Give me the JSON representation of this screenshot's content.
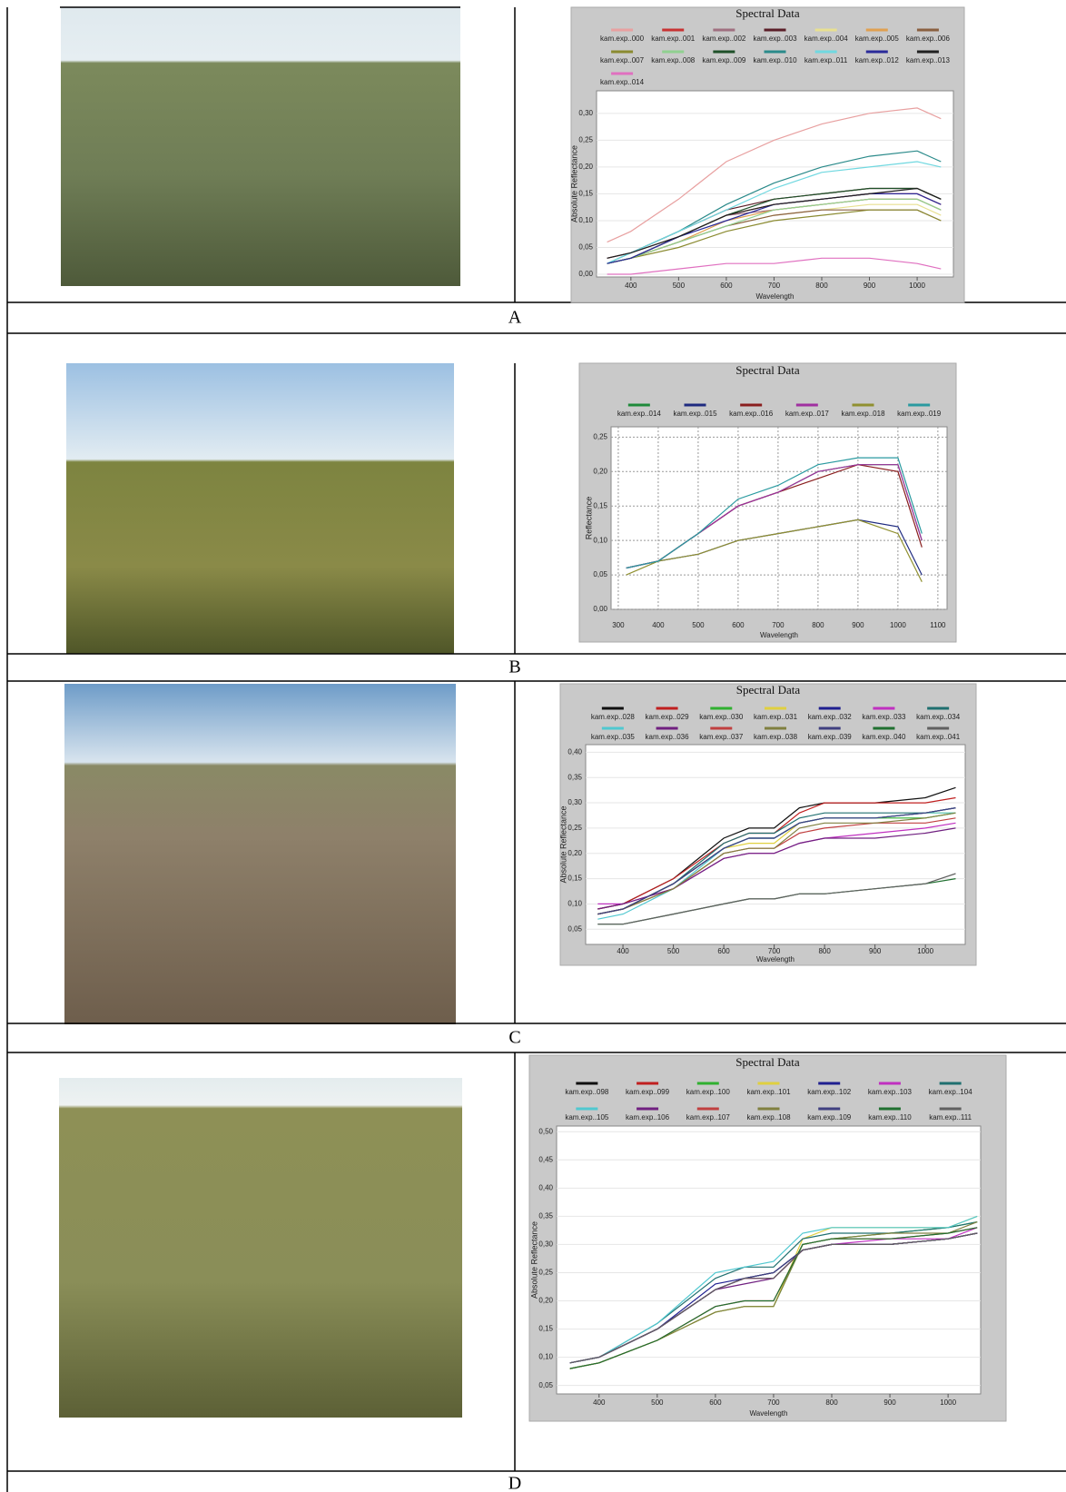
{
  "panel_labels": [
    "A",
    "B",
    "C",
    "D"
  ],
  "chart_data": [
    {
      "type": "line",
      "title": "Spectral Data",
      "xlabel": "Wavelength",
      "ylabel": "Absolute Reflectance",
      "x": [
        350,
        400,
        500,
        600,
        700,
        800,
        900,
        1000,
        1050
      ],
      "xlim": [
        328,
        1076
      ],
      "xticks": [
        400,
        500,
        600,
        700,
        800,
        900,
        1000
      ],
      "ylim": [
        -0.005,
        0.342
      ],
      "yticks": [
        {
          "value": 0,
          "label": "0,00"
        },
        {
          "value": 0.05,
          "label": "0,05"
        },
        {
          "value": 0.1,
          "label": "0,10"
        },
        {
          "value": 0.15,
          "label": "0,15"
        },
        {
          "value": 0.2,
          "label": "0,20"
        },
        {
          "value": 0.25,
          "label": "0,25"
        },
        {
          "value": 0.3,
          "label": "0,30"
        }
      ],
      "grid": true,
      "grid_style": "solid",
      "series": [
        {
          "name": "kam.exp..000",
          "color": "#e8a0a0",
          "values": [
            0.06,
            0.08,
            0.14,
            0.21,
            0.25,
            0.28,
            0.3,
            0.31,
            0.29
          ]
        },
        {
          "name": "kam.exp..001",
          "color": "#c83232",
          "values": [
            0.02,
            0.03,
            0.07,
            0.11,
            0.13,
            0.14,
            0.15,
            0.15,
            0.13
          ]
        },
        {
          "name": "kam.exp..002",
          "color": "#a07080",
          "values": [
            0.03,
            0.04,
            0.07,
            0.11,
            0.12,
            0.13,
            0.14,
            0.14,
            0.12
          ]
        },
        {
          "name": "kam.exp..003",
          "color": "#5a1e28",
          "values": [
            0.03,
            0.04,
            0.08,
            0.12,
            0.14,
            0.15,
            0.16,
            0.16,
            0.14
          ]
        },
        {
          "name": "kam.exp..004",
          "color": "#e8e090",
          "values": [
            0.02,
            0.03,
            0.06,
            0.09,
            0.11,
            0.12,
            0.13,
            0.13,
            0.11
          ]
        },
        {
          "name": "kam.exp..005",
          "color": "#e0a050",
          "values": [
            0.02,
            0.03,
            0.06,
            0.1,
            0.12,
            0.13,
            0.14,
            0.14,
            0.12
          ]
        },
        {
          "name": "kam.exp..006",
          "color": "#8a6040",
          "values": [
            0.02,
            0.03,
            0.06,
            0.09,
            0.11,
            0.12,
            0.12,
            0.12,
            0.1
          ]
        },
        {
          "name": "kam.exp..007",
          "color": "#8a8a30",
          "values": [
            0.02,
            0.03,
            0.05,
            0.08,
            0.1,
            0.11,
            0.12,
            0.12,
            0.1
          ]
        },
        {
          "name": "kam.exp..008",
          "color": "#90d090",
          "values": [
            0.02,
            0.03,
            0.06,
            0.09,
            0.12,
            0.13,
            0.14,
            0.14,
            0.12
          ]
        },
        {
          "name": "kam.exp..009",
          "color": "#1e5028",
          "values": [
            0.02,
            0.03,
            0.07,
            0.11,
            0.14,
            0.15,
            0.16,
            0.16,
            0.14
          ]
        },
        {
          "name": "kam.exp..010",
          "color": "#2a8a8a",
          "values": [
            0.02,
            0.04,
            0.08,
            0.13,
            0.17,
            0.2,
            0.22,
            0.23,
            0.21
          ]
        },
        {
          "name": "kam.exp..011",
          "color": "#70d8e0",
          "values": [
            0.02,
            0.04,
            0.08,
            0.12,
            0.16,
            0.19,
            0.2,
            0.21,
            0.2
          ]
        },
        {
          "name": "kam.exp..012",
          "color": "#2a2a9a",
          "values": [
            0.02,
            0.03,
            0.07,
            0.1,
            0.13,
            0.14,
            0.15,
            0.15,
            0.13
          ]
        },
        {
          "name": "kam.exp..013",
          "color": "#202020",
          "values": [
            0.03,
            0.04,
            0.07,
            0.11,
            0.13,
            0.14,
            0.15,
            0.16,
            0.14
          ]
        },
        {
          "name": "kam.exp..014",
          "color": "#e070c0",
          "values": [
            0.0,
            0.0,
            0.01,
            0.02,
            0.02,
            0.03,
            0.03,
            0.02,
            0.01
          ]
        }
      ]
    },
    {
      "type": "line",
      "title": "Spectral Data",
      "xlabel": "Wavelength",
      "ylabel": "Reflectance",
      "x": [
        320,
        400,
        500,
        600,
        700,
        800,
        900,
        1000,
        1060
      ],
      "xlim": [
        282,
        1123
      ],
      "xticks": [
        300,
        400,
        500,
        600,
        700,
        800,
        900,
        1000,
        1100
      ],
      "ylim": [
        0,
        0.265
      ],
      "yticks": [
        {
          "value": 0,
          "label": "0,00"
        },
        {
          "value": 0.05,
          "label": "0,05"
        },
        {
          "value": 0.1,
          "label": "0,10"
        },
        {
          "value": 0.15,
          "label": "0,15"
        },
        {
          "value": 0.2,
          "label": "0,20"
        },
        {
          "value": 0.25,
          "label": "0,25"
        }
      ],
      "grid": true,
      "grid_style": "dashed",
      "series": [
        {
          "name": "kam.exp..014",
          "color": "#1e8a3a",
          "values": [
            0.06,
            0.07,
            0.11,
            0.15,
            0.17,
            0.2,
            0.21,
            0.21,
            0.1
          ]
        },
        {
          "name": "kam.exp..015",
          "color": "#1e2a80",
          "values": [
            0.06,
            0.07,
            0.08,
            0.1,
            0.11,
            0.12,
            0.13,
            0.12,
            0.05
          ]
        },
        {
          "name": "kam.exp..016",
          "color": "#8a1e1e",
          "values": [
            0.06,
            0.07,
            0.11,
            0.15,
            0.17,
            0.19,
            0.21,
            0.2,
            0.09
          ]
        },
        {
          "name": "kam.exp..017",
          "color": "#a030a0",
          "values": [
            0.06,
            0.07,
            0.11,
            0.15,
            0.17,
            0.2,
            0.21,
            0.21,
            0.1
          ]
        },
        {
          "name": "kam.exp..018",
          "color": "#909030",
          "values": [
            0.05,
            0.07,
            0.08,
            0.1,
            0.11,
            0.12,
            0.13,
            0.11,
            0.04
          ]
        },
        {
          "name": "kam.exp..019",
          "color": "#2a9aa0",
          "values": [
            0.06,
            0.07,
            0.11,
            0.16,
            0.18,
            0.21,
            0.22,
            0.22,
            0.11
          ]
        }
      ]
    },
    {
      "type": "line",
      "title": "Spectral Data",
      "xlabel": "Wavelength",
      "ylabel": "Absolute Reflectance",
      "x": [
        350,
        400,
        500,
        600,
        650,
        700,
        750,
        800,
        900,
        1000,
        1060
      ],
      "xlim": [
        326,
        1079
      ],
      "xticks": [
        400,
        500,
        600,
        700,
        800,
        900,
        1000
      ],
      "ylim": [
        0.02,
        0.415
      ],
      "yticks": [
        {
          "value": 0.05,
          "label": "0,05"
        },
        {
          "value": 0.1,
          "label": "0,10"
        },
        {
          "value": 0.15,
          "label": "0,15"
        },
        {
          "value": 0.2,
          "label": "0,20"
        },
        {
          "value": 0.25,
          "label": "0,25"
        },
        {
          "value": 0.3,
          "label": "0,30"
        },
        {
          "value": 0.35,
          "label": "0,35"
        },
        {
          "value": 0.4,
          "label": "0,40"
        }
      ],
      "grid": true,
      "grid_style": "solid",
      "series": [
        {
          "name": "kam.exp..028",
          "color": "#101010",
          "values": [
            0.09,
            0.1,
            0.15,
            0.23,
            0.25,
            0.25,
            0.29,
            0.3,
            0.3,
            0.31,
            0.33
          ]
        },
        {
          "name": "kam.exp..029",
          "color": "#c02020",
          "values": [
            0.09,
            0.1,
            0.15,
            0.22,
            0.24,
            0.24,
            0.28,
            0.3,
            0.3,
            0.3,
            0.31
          ]
        },
        {
          "name": "kam.exp..030",
          "color": "#30b030",
          "values": [
            0.08,
            0.09,
            0.14,
            0.21,
            0.23,
            0.23,
            0.26,
            0.27,
            0.27,
            0.27,
            0.28
          ]
        },
        {
          "name": "kam.exp..031",
          "color": "#e0d040",
          "values": [
            0.08,
            0.09,
            0.14,
            0.21,
            0.22,
            0.22,
            0.26,
            0.27,
            0.27,
            0.28,
            0.28
          ]
        },
        {
          "name": "kam.exp..032",
          "color": "#202090",
          "values": [
            0.08,
            0.09,
            0.14,
            0.21,
            0.23,
            0.23,
            0.26,
            0.27,
            0.27,
            0.28,
            0.29
          ]
        },
        {
          "name": "kam.exp..033",
          "color": "#c030c0",
          "values": [
            0.1,
            0.1,
            0.13,
            0.19,
            0.2,
            0.2,
            0.22,
            0.23,
            0.24,
            0.25,
            0.26
          ]
        },
        {
          "name": "kam.exp..034",
          "color": "#207070",
          "values": [
            0.08,
            0.09,
            0.14,
            0.22,
            0.24,
            0.24,
            0.27,
            0.28,
            0.28,
            0.28,
            0.29
          ]
        },
        {
          "name": "kam.exp..035",
          "color": "#50c8d0",
          "values": [
            0.07,
            0.08,
            0.13,
            0.21,
            0.23,
            0.23,
            0.26,
            0.27,
            0.27,
            0.28,
            0.28
          ]
        },
        {
          "name": "kam.exp..036",
          "color": "#702080",
          "values": [
            0.09,
            0.1,
            0.13,
            0.19,
            0.2,
            0.2,
            0.22,
            0.23,
            0.23,
            0.24,
            0.25
          ]
        },
        {
          "name": "kam.exp..037",
          "color": "#c04040",
          "values": [
            0.08,
            0.09,
            0.13,
            0.2,
            0.21,
            0.21,
            0.24,
            0.25,
            0.26,
            0.26,
            0.27
          ]
        },
        {
          "name": "kam.exp..038",
          "color": "#808040",
          "values": [
            0.08,
            0.09,
            0.13,
            0.2,
            0.21,
            0.21,
            0.25,
            0.26,
            0.26,
            0.27,
            0.28
          ]
        },
        {
          "name": "kam.exp..039",
          "color": "#404080",
          "values": [
            0.08,
            0.09,
            0.14,
            0.21,
            0.23,
            0.23,
            0.26,
            0.27,
            0.27,
            0.28,
            0.29
          ]
        },
        {
          "name": "kam.exp..040",
          "color": "#207030",
          "values": [
            0.06,
            0.06,
            0.08,
            0.1,
            0.11,
            0.11,
            0.12,
            0.12,
            0.13,
            0.14,
            0.15
          ]
        },
        {
          "name": "kam.exp..041",
          "color": "#606060",
          "values": [
            0.06,
            0.06,
            0.08,
            0.1,
            0.11,
            0.11,
            0.12,
            0.12,
            0.13,
            0.14,
            0.16
          ]
        }
      ]
    },
    {
      "type": "line",
      "title": "Spectral Data",
      "xlabel": "Wavelength",
      "ylabel": "Absolute Reflectance",
      "x": [
        350,
        400,
        500,
        600,
        650,
        700,
        750,
        800,
        900,
        1000,
        1050
      ],
      "xlim": [
        327,
        1056
      ],
      "xticks": [
        400,
        500,
        600,
        700,
        800,
        900,
        1000
      ],
      "ylim": [
        0.035,
        0.51
      ],
      "yticks": [
        {
          "value": 0.05,
          "label": "0,05"
        },
        {
          "value": 0.1,
          "label": "0,10"
        },
        {
          "value": 0.15,
          "label": "0,15"
        },
        {
          "value": 0.2,
          "label": "0,20"
        },
        {
          "value": 0.25,
          "label": "0,25"
        },
        {
          "value": 0.3,
          "label": "0,30"
        },
        {
          "value": 0.35,
          "label": "0,35"
        },
        {
          "value": 0.4,
          "label": "0,40"
        },
        {
          "value": 0.45,
          "label": "0,45"
        },
        {
          "value": 0.5,
          "label": "0,50"
        }
      ],
      "grid": true,
      "grid_style": "solid",
      "series": [
        {
          "name": "kam.exp..098",
          "color": "#101010",
          "values": [
            0.09,
            0.1,
            0.15,
            0.22,
            0.24,
            0.25,
            0.29,
            0.3,
            0.3,
            0.31,
            0.32
          ]
        },
        {
          "name": "kam.exp..099",
          "color": "#c02020",
          "values": [
            0.09,
            0.1,
            0.15,
            0.22,
            0.24,
            0.24,
            0.29,
            0.3,
            0.3,
            0.31,
            0.32
          ]
        },
        {
          "name": "kam.exp..100",
          "color": "#30b030",
          "values": [
            0.08,
            0.09,
            0.13,
            0.18,
            0.19,
            0.19,
            0.3,
            0.31,
            0.32,
            0.33,
            0.34
          ]
        },
        {
          "name": "kam.exp..101",
          "color": "#e0d040",
          "values": [
            0.08,
            0.09,
            0.13,
            0.18,
            0.19,
            0.19,
            0.31,
            0.33,
            0.33,
            0.33,
            0.35
          ]
        },
        {
          "name": "kam.exp..102",
          "color": "#202090",
          "values": [
            0.09,
            0.1,
            0.15,
            0.23,
            0.24,
            0.25,
            0.29,
            0.3,
            0.3,
            0.31,
            0.32
          ]
        },
        {
          "name": "kam.exp..103",
          "color": "#c030c0",
          "values": [
            0.09,
            0.1,
            0.15,
            0.22,
            0.24,
            0.24,
            0.29,
            0.3,
            0.31,
            0.31,
            0.33
          ]
        },
        {
          "name": "kam.exp..104",
          "color": "#207070",
          "values": [
            0.09,
            0.1,
            0.16,
            0.24,
            0.26,
            0.26,
            0.31,
            0.32,
            0.32,
            0.33,
            0.34
          ]
        },
        {
          "name": "kam.exp..105",
          "color": "#50c8d0",
          "values": [
            0.09,
            0.1,
            0.16,
            0.25,
            0.26,
            0.27,
            0.32,
            0.33,
            0.33,
            0.33,
            0.35
          ]
        },
        {
          "name": "kam.exp..106",
          "color": "#702080",
          "values": [
            0.09,
            0.1,
            0.15,
            0.22,
            0.23,
            0.24,
            0.29,
            0.3,
            0.3,
            0.31,
            0.32
          ]
        },
        {
          "name": "kam.exp..107",
          "color": "#c04040",
          "values": [
            0.08,
            0.09,
            0.13,
            0.19,
            0.2,
            0.2,
            0.3,
            0.31,
            0.31,
            0.32,
            0.33
          ]
        },
        {
          "name": "kam.exp..108",
          "color": "#808040",
          "values": [
            0.08,
            0.09,
            0.13,
            0.18,
            0.19,
            0.19,
            0.3,
            0.31,
            0.32,
            0.32,
            0.34
          ]
        },
        {
          "name": "kam.exp..109",
          "color": "#404080",
          "values": [
            0.09,
            0.1,
            0.15,
            0.22,
            0.24,
            0.25,
            0.29,
            0.3,
            0.3,
            0.31,
            0.32
          ]
        },
        {
          "name": "kam.exp..110",
          "color": "#207030",
          "values": [
            0.08,
            0.09,
            0.13,
            0.19,
            0.2,
            0.2,
            0.3,
            0.31,
            0.31,
            0.32,
            0.33
          ]
        },
        {
          "name": "kam.exp..111",
          "color": "#606060",
          "values": [
            0.09,
            0.1,
            0.15,
            0.22,
            0.24,
            0.24,
            0.29,
            0.3,
            0.3,
            0.31,
            0.32
          ]
        }
      ]
    }
  ]
}
